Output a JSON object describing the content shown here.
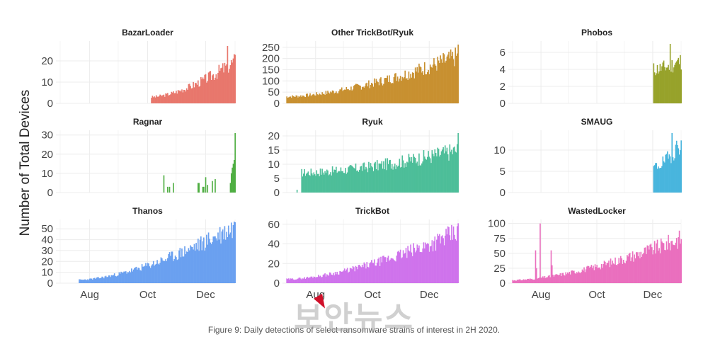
{
  "figure": {
    "y_axis_title": "Number of Total Devices",
    "caption": "Figure 9: Daily detections of select ransomware strains of interest in 2H 2020.",
    "watermark_text": "보안뉴스",
    "x_tick_labels": [
      "Aug",
      "Oct",
      "Dec"
    ],
    "x_tick_positions_days": [
      31,
      92,
      153
    ]
  },
  "chart_data": [
    {
      "type": "bar",
      "title": "BazarLoader",
      "color": "#E8776C",
      "ylim": [
        0,
        28
      ],
      "yticks": [
        0,
        10,
        20
      ],
      "start_day": 96,
      "end_day": 184,
      "peak_day": 176,
      "base": [
        3,
        20
      ],
      "peak": 27,
      "spikes": [],
      "seed": 3
    },
    {
      "type": "bar",
      "title": "Other TrickBot/Ryuk",
      "color": "#C89030",
      "ylim": [
        0,
        265
      ],
      "yticks": [
        0,
        50,
        100,
        150,
        200,
        250
      ],
      "start_day": 0,
      "end_day": 184,
      "peak_day": 184,
      "base": [
        30,
        210
      ],
      "peak": 262,
      "spikes": [],
      "seed": 7
    },
    {
      "type": "bar",
      "title": "Phobos",
      "color": "#97A22A",
      "ylim": [
        0,
        7
      ],
      "yticks": [
        0,
        2,
        4,
        6
      ],
      "start_day": 154,
      "end_day": 184,
      "peak_day": 172,
      "base": [
        4,
        5
      ],
      "peak": 7,
      "spikes": [],
      "seed": 11
    },
    {
      "type": "bar",
      "title": "Ragnar",
      "color": "#4FAE42",
      "ylim": [
        0,
        31
      ],
      "yticks": [
        0,
        10,
        20,
        30
      ],
      "start_day": 0,
      "end_day": 184,
      "peak_day": 184,
      "base": [
        0,
        0
      ],
      "peak": 31,
      "spikes": [
        [
          109,
          9
        ],
        [
          113,
          3
        ],
        [
          115,
          3
        ],
        [
          119,
          5
        ],
        [
          145,
          5
        ],
        [
          146,
          5
        ],
        [
          150,
          3
        ],
        [
          151,
          3
        ],
        [
          153,
          8
        ],
        [
          155,
          4
        ],
        [
          160,
          6
        ],
        [
          163,
          7
        ],
        [
          179,
          5
        ],
        [
          180,
          10
        ],
        [
          181,
          13
        ],
        [
          182,
          15
        ],
        [
          183,
          17
        ]
      ],
      "seed": 13
    },
    {
      "type": "bar",
      "title": "Ryuk",
      "color": "#4DBE99",
      "ylim": [
        0,
        21
      ],
      "yticks": [
        0,
        5,
        10,
        15,
        20
      ],
      "start_day": 16,
      "end_day": 184,
      "peak_day": 184,
      "base": [
        7,
        15
      ],
      "peak": 21,
      "spikes": [
        [
          11,
          1
        ]
      ],
      "seed": 17
    },
    {
      "type": "bar",
      "title": "SMAUG",
      "color": "#48B5DD",
      "ylim": [
        0,
        14
      ],
      "yticks": [
        0,
        5,
        10
      ],
      "start_day": 154,
      "end_day": 184,
      "peak_day": 174,
      "base": [
        6,
        12
      ],
      "peak": 14,
      "spikes": [],
      "seed": 19
    },
    {
      "type": "bar",
      "title": "Thanos",
      "color": "#6AA0F0",
      "ylim": [
        0,
        56
      ],
      "yticks": [
        0,
        10,
        20,
        30,
        40,
        50
      ],
      "start_day": 20,
      "end_day": 184,
      "peak_day": 184,
      "base": [
        3,
        52
      ],
      "peak": 56,
      "spikes": [],
      "seed": 23
    },
    {
      "type": "bar",
      "title": "TrickBot",
      "color": "#CF73EC",
      "ylim": [
        0,
        62
      ],
      "yticks": [
        0,
        20,
        40,
        60
      ],
      "start_day": 0,
      "end_day": 184,
      "peak_day": 184,
      "base": [
        4,
        52
      ],
      "peak": 61,
      "spikes": [],
      "seed": 29
    },
    {
      "type": "bar",
      "title": "WastedLocker",
      "color": "#EA6FBE",
      "ylim": [
        0,
        102
      ],
      "yticks": [
        0,
        25,
        50,
        75,
        100
      ],
      "start_day": 0,
      "end_day": 184,
      "peak_day": 30,
      "base": [
        5,
        75
      ],
      "peak": 100,
      "spikes": [
        [
          25,
          55
        ],
        [
          26,
          25
        ],
        [
          42,
          55
        ],
        [
          43,
          30
        ],
        [
          60,
          3
        ],
        [
          61,
          3
        ]
      ],
      "seed": 31
    }
  ]
}
